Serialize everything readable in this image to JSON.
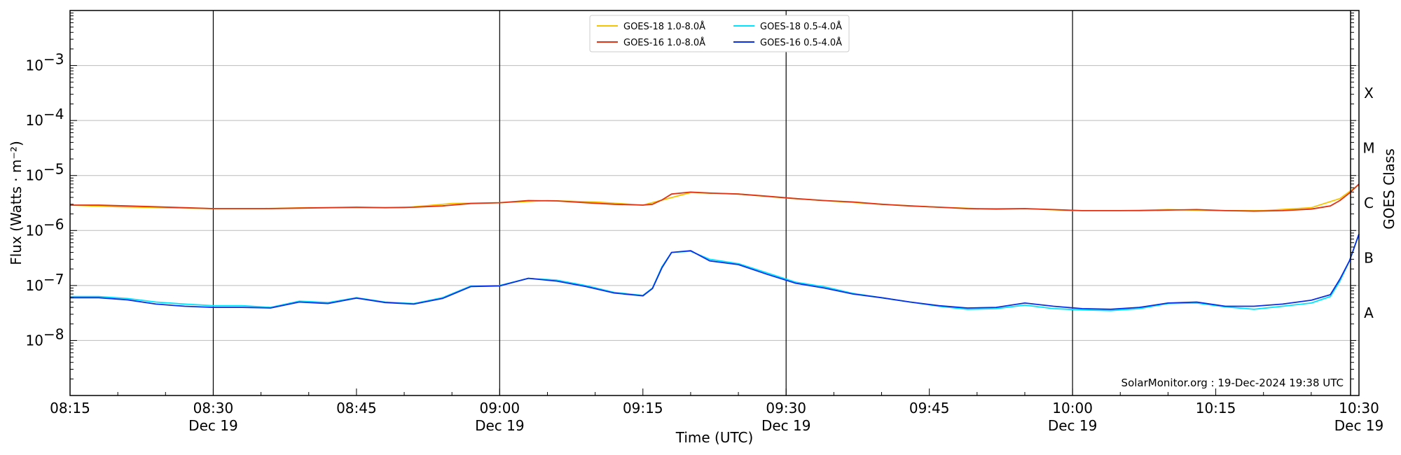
{
  "chart_data": {
    "type": "line",
    "title": "",
    "xlabel": "Time (UTC)",
    "ylabel": "Flux (Watts · m⁻²)",
    "y2label": "GOES Class",
    "yscale": "log",
    "ylim": [
      1e-09,
      0.01
    ],
    "xlim": [
      "08:15",
      "10:30"
    ],
    "x_tick_labels": [
      {
        "time": "08:15",
        "date": ""
      },
      {
        "time": "08:30",
        "date": "Dec 19"
      },
      {
        "time": "08:45",
        "date": ""
      },
      {
        "time": "09:00",
        "date": "Dec 19"
      },
      {
        "time": "09:15",
        "date": ""
      },
      {
        "time": "09:30",
        "date": "Dec 19"
      },
      {
        "time": "09:45",
        "date": ""
      },
      {
        "time": "10:00",
        "date": "Dec 19"
      },
      {
        "time": "10:15",
        "date": ""
      },
      {
        "time": "10:30",
        "date": "Dec 19"
      }
    ],
    "y_ticks": [
      {
        "value": 1e-08,
        "label_base": "10",
        "label_exp": "−8"
      },
      {
        "value": 1e-07,
        "label_base": "10",
        "label_exp": "−7"
      },
      {
        "value": 1e-06,
        "label_base": "10",
        "label_exp": "−6"
      },
      {
        "value": 1e-05,
        "label_base": "10",
        "label_exp": "−5"
      },
      {
        "value": 0.0001,
        "label_base": "10",
        "label_exp": "−4"
      },
      {
        "value": 0.001,
        "label_base": "10",
        "label_exp": "−3"
      }
    ],
    "goes_classes": [
      {
        "label": "A",
        "value": 3.16e-08
      },
      {
        "label": "B",
        "value": 3.16e-07
      },
      {
        "label": "C",
        "value": 3.16e-06
      },
      {
        "label": "M",
        "value": 3.16e-05
      },
      {
        "label": "X",
        "value": 0.000316
      }
    ],
    "vertical_lines": [
      "08:30",
      "09:00",
      "09:30",
      "10:00"
    ],
    "grid": "horizontal at decades",
    "legend_position": "top-center",
    "series": [
      {
        "name": "GOES-18 1.0-8.0Å",
        "color": "#f5c400",
        "x": [
          "08:15",
          "08:20",
          "08:25",
          "08:30",
          "08:35",
          "08:40",
          "08:45",
          "08:50",
          "08:55",
          "09:00",
          "09:05",
          "09:10",
          "09:15",
          "09:20",
          "09:25",
          "09:30",
          "09:35",
          "09:40",
          "09:45",
          "09:50",
          "09:55",
          "10:00",
          "10:05",
          "10:10",
          "10:15",
          "10:20",
          "10:25",
          "10:28",
          "10:30"
        ],
        "y": [
          2.9e-06,
          2.7e-06,
          2.6e-06,
          2.5e-06,
          2.5e-06,
          2.6e-06,
          2.6e-06,
          2.6e-06,
          3.1e-06,
          3.2e-06,
          3.5e-06,
          3.3e-06,
          2.9e-06,
          4.9e-06,
          4.6e-06,
          3.9e-06,
          3.4e-06,
          3e-06,
          2.7e-06,
          2.5e-06,
          2.5e-06,
          2.3e-06,
          2.3e-06,
          2.4e-06,
          2.3e-06,
          2.3e-06,
          2.6e-06,
          3.8e-06,
          6.8e-06
        ]
      },
      {
        "name": "GOES-16 1.0-8.0Å",
        "color": "#e03214",
        "x": [
          "08:15",
          "08:18",
          "08:21",
          "08:24",
          "08:27",
          "08:30",
          "08:33",
          "08:36",
          "08:39",
          "08:42",
          "08:45",
          "08:48",
          "08:51",
          "08:54",
          "08:57",
          "09:00",
          "09:03",
          "09:06",
          "09:09",
          "09:12",
          "09:15",
          "09:16",
          "09:17",
          "09:18",
          "09:20",
          "09:22",
          "09:25",
          "09:28",
          "09:31",
          "09:34",
          "09:37",
          "09:40",
          "09:43",
          "09:46",
          "09:49",
          "09:52",
          "09:55",
          "09:58",
          "10:01",
          "10:04",
          "10:07",
          "10:10",
          "10:13",
          "10:16",
          "10:19",
          "10:22",
          "10:25",
          "10:27",
          "10:28",
          "10:29",
          "10:30"
        ],
        "y": [
          2.9e-06,
          2.9e-06,
          2.8e-06,
          2.7e-06,
          2.6e-06,
          2.5e-06,
          2.5e-06,
          2.5e-06,
          2.55e-06,
          2.6e-06,
          2.65e-06,
          2.6e-06,
          2.65e-06,
          2.8e-06,
          3.1e-06,
          3.2e-06,
          3.5e-06,
          3.45e-06,
          3.2e-06,
          3e-06,
          2.9e-06,
          3e-06,
          3.6e-06,
          4.6e-06,
          5e-06,
          4.8e-06,
          4.6e-06,
          4.2e-06,
          3.8e-06,
          3.5e-06,
          3.3e-06,
          3e-06,
          2.8e-06,
          2.65e-06,
          2.5e-06,
          2.45e-06,
          2.5e-06,
          2.4e-06,
          2.3e-06,
          2.3e-06,
          2.3e-06,
          2.35e-06,
          2.4e-06,
          2.3e-06,
          2.25e-06,
          2.3e-06,
          2.45e-06,
          2.8e-06,
          3.5e-06,
          4.8e-06,
          7e-06
        ]
      },
      {
        "name": "GOES-18 0.5-4.0Å",
        "color": "#00e5ff",
        "x": [
          "08:15",
          "08:18",
          "08:21",
          "08:24",
          "08:27",
          "08:30",
          "08:33",
          "08:36",
          "08:39",
          "08:42",
          "08:45",
          "08:48",
          "08:51",
          "08:54",
          "08:57",
          "09:00",
          "09:03",
          "09:06",
          "09:09",
          "09:12",
          "09:15",
          "09:16",
          "09:17",
          "09:18",
          "09:20",
          "09:22",
          "09:25",
          "09:28",
          "09:31",
          "09:34",
          "09:37",
          "09:40",
          "09:43",
          "09:46",
          "09:49",
          "09:52",
          "09:55",
          "09:58",
          "10:01",
          "10:04",
          "10:07",
          "10:10",
          "10:13",
          "10:16",
          "10:19",
          "10:22",
          "10:25",
          "10:27",
          "10:28",
          "10:29",
          "10:30"
        ],
        "y": [
          6.3e-08,
          6.3e-08,
          5.8e-08,
          5e-08,
          4.6e-08,
          4.3e-08,
          4.3e-08,
          4e-08,
          5.2e-08,
          4.9e-08,
          6e-08,
          5e-08,
          4.7e-08,
          6e-08,
          9.8e-08,
          1e-07,
          1.35e-07,
          1.25e-07,
          1e-07,
          7.5e-08,
          6.6e-08,
          9e-08,
          2.2e-07,
          4e-07,
          4.2e-07,
          3e-07,
          2.5e-07,
          1.7e-07,
          1.15e-07,
          9.5e-08,
          7.2e-08,
          6e-08,
          5e-08,
          4.2e-08,
          3.7e-08,
          3.8e-08,
          4.4e-08,
          3.8e-08,
          3.6e-08,
          3.5e-08,
          3.8e-08,
          4.7e-08,
          4.8e-08,
          4.1e-08,
          3.7e-08,
          4.2e-08,
          4.8e-08,
          6.3e-08,
          1.2e-07,
          2.8e-07,
          8.6e-07
        ]
      },
      {
        "name": "GOES-16 0.5-4.0Å",
        "color": "#0a2ee6",
        "x": [
          "08:15",
          "08:18",
          "08:21",
          "08:24",
          "08:27",
          "08:30",
          "08:33",
          "08:36",
          "08:39",
          "08:42",
          "08:45",
          "08:48",
          "08:51",
          "08:54",
          "08:57",
          "09:00",
          "09:03",
          "09:06",
          "09:09",
          "09:12",
          "09:15",
          "09:16",
          "09:17",
          "09:18",
          "09:20",
          "09:22",
          "09:25",
          "09:28",
          "09:31",
          "09:34",
          "09:37",
          "09:40",
          "09:43",
          "09:46",
          "09:49",
          "09:52",
          "09:55",
          "09:58",
          "10:01",
          "10:04",
          "10:07",
          "10:10",
          "10:13",
          "10:16",
          "10:19",
          "10:22",
          "10:25",
          "10:27",
          "10:28",
          "10:29",
          "10:30"
        ],
        "y": [
          6e-08,
          6e-08,
          5.5e-08,
          4.6e-08,
          4.2e-08,
          4e-08,
          4e-08,
          3.9e-08,
          5e-08,
          4.7e-08,
          5.9e-08,
          4.9e-08,
          4.6e-08,
          5.8e-08,
          9.6e-08,
          9.8e-08,
          1.35e-07,
          1.2e-07,
          9.6e-08,
          7.3e-08,
          6.5e-08,
          8.8e-08,
          2.1e-07,
          4e-07,
          4.3e-07,
          2.8e-07,
          2.4e-07,
          1.6e-07,
          1.1e-07,
          9e-08,
          7e-08,
          6e-08,
          5e-08,
          4.3e-08,
          3.9e-08,
          4e-08,
          4.8e-08,
          4.2e-08,
          3.8e-08,
          3.7e-08,
          4e-08,
          4.8e-08,
          5e-08,
          4.2e-08,
          4.2e-08,
          4.6e-08,
          5.4e-08,
          6.8e-08,
          1.3e-07,
          2.8e-07,
          8.6e-07
        ]
      }
    ],
    "annotation": "SolarMonitor.org : 19-Dec-2024 19:38 UTC"
  }
}
